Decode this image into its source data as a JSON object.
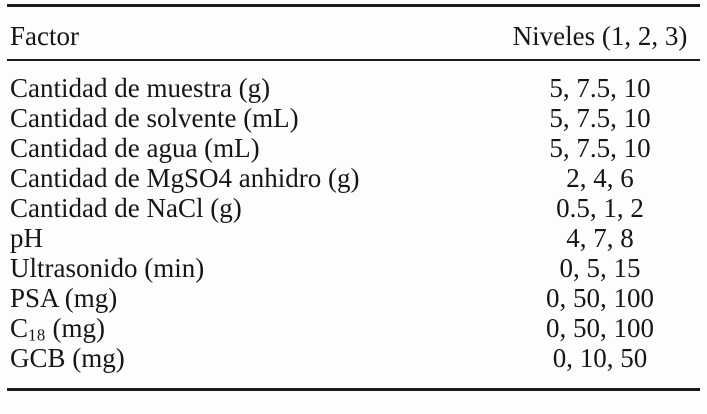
{
  "table": {
    "header": {
      "factor": "Factor",
      "levels": "Niveles (1, 2, 3)"
    },
    "rows": [
      {
        "factor": "Cantidad de muestra (g)",
        "levels": "5, 7.5, 10"
      },
      {
        "factor": "Cantidad de solvente (mL)",
        "levels": "5, 7.5, 10"
      },
      {
        "factor": "Cantidad de agua (mL)",
        "levels": "5, 7.5, 10"
      },
      {
        "factor": "Cantidad de MgSO4 anhidro (g)",
        "levels": "2, 4, 6"
      },
      {
        "factor": "Cantidad de NaCl (g)",
        "levels": "0.5, 1, 2"
      },
      {
        "factor": "pH",
        "levels": "4, 7, 8"
      },
      {
        "factor": "Ultrasonido (min)",
        "levels": "0, 5, 15"
      },
      {
        "factor": "PSA (mg)",
        "levels": "0, 50, 100"
      },
      {
        "factor": "C",
        "factor_sub": "18",
        "factor_post": " (mg)",
        "levels": "0, 50, 100"
      },
      {
        "factor": "GCB (mg)",
        "levels": "0, 10, 50"
      }
    ]
  }
}
